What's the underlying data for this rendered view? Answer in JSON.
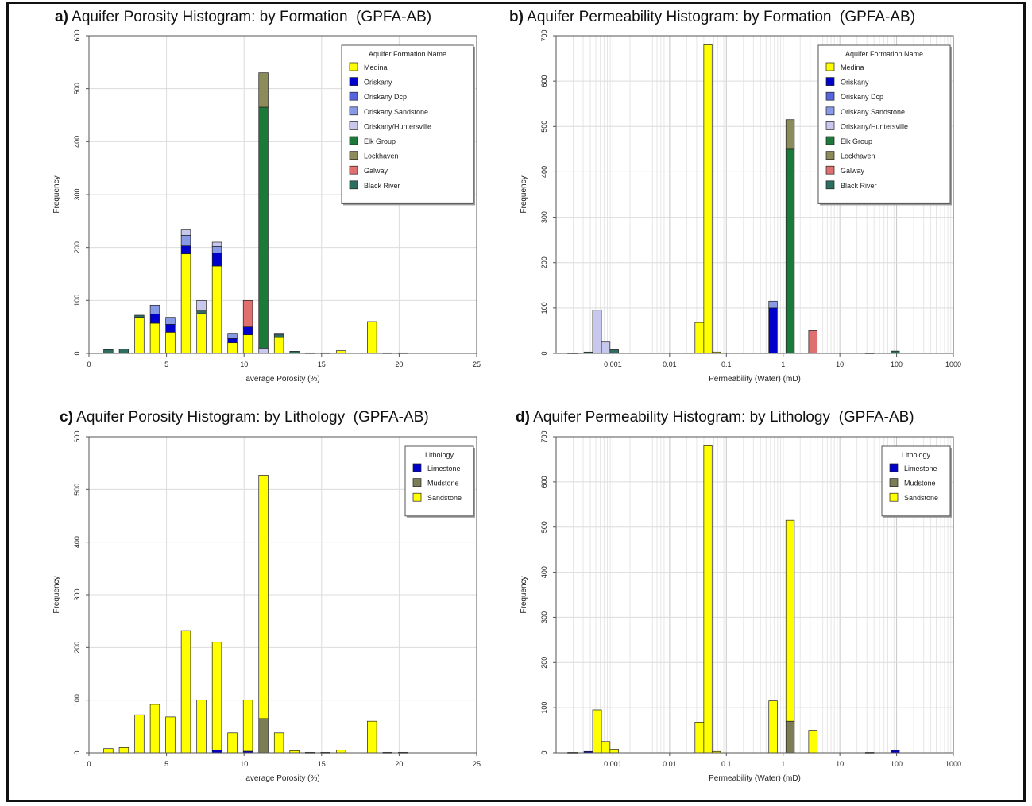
{
  "colors": {
    "Medina": "#ffff00",
    "Oriskany": "#0000cc",
    "Oriskany Dcp": "#5566dd",
    "Oriskany Sandstone": "#8899e6",
    "Oriskany/Huntersville": "#c8c8ee",
    "Elk Group": "#1b7a3a",
    "Lockhaven": "#8c8c5a",
    "Galway": "#e07070",
    "Black River": "#2e6e60",
    "Limestone": "#0000cc",
    "Mudstone": "#7d7d55",
    "Sandstone": "#ffff00"
  },
  "panels": [
    {
      "id": "a",
      "label": "a)",
      "title": "Aquifer Porosity Histogram: by Formation",
      "source": "(GPFA-AB)",
      "chart_data": {
        "type": "bar",
        "stacked": true,
        "x_scale": "linear",
        "xlabel": "average Porosity (%)",
        "ylabel": "Frequency",
        "xlim": [
          0,
          25
        ],
        "ylim": [
          0,
          600
        ],
        "xticks": [
          0,
          5,
          10,
          15,
          20,
          25
        ],
        "yticks": [
          0,
          100,
          200,
          300,
          400,
          500,
          600
        ],
        "grid": true,
        "legend_title": "Aquifer Formation Name",
        "legend_position": "top-right",
        "legend": [
          "Medina",
          "Oriskany",
          "Oriskany Dcp",
          "Oriskany Sandstone",
          "Oriskany/Huntersville",
          "Elk Group",
          "Lockhaven",
          "Galway",
          "Black River"
        ],
        "bars": [
          {
            "x": 1.25,
            "segments": [
              [
                "Black River",
                7
              ]
            ]
          },
          {
            "x": 2.25,
            "segments": [
              [
                "Black River",
                8
              ]
            ]
          },
          {
            "x": 3.25,
            "segments": [
              [
                "Medina",
                68
              ],
              [
                "Black River",
                4
              ]
            ]
          },
          {
            "x": 4.25,
            "segments": [
              [
                "Medina",
                57
              ],
              [
                "Oriskany",
                17
              ],
              [
                "Oriskany Sandstone",
                17
              ]
            ]
          },
          {
            "x": 5.25,
            "segments": [
              [
                "Medina",
                40
              ],
              [
                "Oriskany",
                15
              ],
              [
                "Oriskany Sandstone",
                13
              ]
            ]
          },
          {
            "x": 6.25,
            "segments": [
              [
                "Medina",
                188
              ],
              [
                "Oriskany",
                15
              ],
              [
                "Oriskany Sandstone",
                20
              ],
              [
                "Oriskany/Huntersville",
                10
              ]
            ]
          },
          {
            "x": 7.25,
            "segments": [
              [
                "Medina",
                75
              ],
              [
                "Black River",
                5
              ],
              [
                "Oriskany/Huntersville",
                20
              ]
            ]
          },
          {
            "x": 8.25,
            "segments": [
              [
                "Medina",
                165
              ],
              [
                "Oriskany",
                25
              ],
              [
                "Oriskany Sandstone",
                12
              ],
              [
                "Oriskany/Huntersville",
                8
              ]
            ]
          },
          {
            "x": 9.25,
            "segments": [
              [
                "Medina",
                20
              ],
              [
                "Oriskany",
                8
              ],
              [
                "Oriskany Sandstone",
                10
              ]
            ]
          },
          {
            "x": 10.25,
            "segments": [
              [
                "Medina",
                35
              ],
              [
                "Oriskany",
                15
              ],
              [
                "Galway",
                50
              ]
            ]
          },
          {
            "x": 11.25,
            "segments": [
              [
                "Oriskany/Huntersville",
                10
              ],
              [
                "Elk Group",
                455
              ],
              [
                "Lockhaven",
                65
              ]
            ]
          },
          {
            "x": 12.25,
            "segments": [
              [
                "Medina",
                30
              ],
              [
                "Black River",
                5
              ],
              [
                "Oriskany Sandstone",
                3
              ]
            ]
          },
          {
            "x": 13.25,
            "segments": [
              [
                "Black River",
                4
              ]
            ]
          },
          {
            "x": 14.25,
            "segments": [
              [
                "Medina",
                1
              ]
            ]
          },
          {
            "x": 15.25,
            "segments": [
              [
                "Medina",
                1
              ]
            ]
          },
          {
            "x": 16.25,
            "segments": [
              [
                "Medina",
                5
              ]
            ]
          },
          {
            "x": 18.25,
            "segments": [
              [
                "Medina",
                60
              ]
            ]
          },
          {
            "x": 19.25,
            "segments": [
              [
                "Medina",
                1
              ]
            ]
          },
          {
            "x": 20.25,
            "segments": [
              [
                "Medina",
                1
              ]
            ]
          }
        ]
      }
    },
    {
      "id": "b",
      "label": "b)",
      "title": "Aquifer Permeability Histogram: by Formation",
      "source": "(GPFA-AB)",
      "chart_data": {
        "type": "bar",
        "stacked": true,
        "x_scale": "log",
        "xlabel": "Permeability (Water) (mD)",
        "ylabel": "Frequency",
        "xlim": [
          0.0001,
          1000
        ],
        "ylim": [
          0,
          700
        ],
        "xticks": [
          0.001,
          0.01,
          0.1,
          1,
          10,
          100,
          1000
        ],
        "xticklabels": [
          "0.001",
          "0.01",
          "0.1",
          "1",
          "10",
          "100",
          "1000"
        ],
        "yticks": [
          0,
          100,
          200,
          300,
          400,
          500,
          600,
          700
        ],
        "grid": true,
        "legend_title": "Aquifer Formation Name",
        "legend_position": "top-right",
        "legend": [
          "Medina",
          "Oriskany",
          "Oriskany Dcp",
          "Oriskany Sandstone",
          "Oriskany/Huntersville",
          "Elk Group",
          "Lockhaven",
          "Galway",
          "Black River"
        ],
        "bars": [
          {
            "x0": 0.00016,
            "x1": 0.00024,
            "segments": [
              [
                "Black River",
                1
              ]
            ]
          },
          {
            "x0": 0.00031,
            "x1": 0.00044,
            "segments": [
              [
                "Black River",
                3
              ]
            ]
          },
          {
            "x0": 0.00044,
            "x1": 0.00063,
            "segments": [
              [
                "Oriskany/Huntersville",
                95
              ]
            ]
          },
          {
            "x0": 0.00063,
            "x1": 0.00089,
            "segments": [
              [
                "Oriskany/Huntersville",
                25
              ]
            ]
          },
          {
            "x0": 0.00089,
            "x1": 0.00126,
            "segments": [
              [
                "Black River",
                8
              ]
            ]
          },
          {
            "x0": 0.028,
            "x1": 0.04,
            "segments": [
              [
                "Medina",
                68
              ]
            ]
          },
          {
            "x0": 0.04,
            "x1": 0.056,
            "segments": [
              [
                "Medina",
                680
              ]
            ]
          },
          {
            "x0": 0.056,
            "x1": 0.079,
            "segments": [
              [
                "Medina",
                3
              ]
            ]
          },
          {
            "x0": 0.56,
            "x1": 0.79,
            "segments": [
              [
                "Oriskany",
                100
              ],
              [
                "Oriskany Sandstone",
                15
              ]
            ]
          },
          {
            "x0": 1.12,
            "x1": 1.58,
            "segments": [
              [
                "Elk Group",
                450
              ],
              [
                "Lockhaven",
                65
              ]
            ]
          },
          {
            "x0": 2.82,
            "x1": 3.98,
            "segments": [
              [
                "Galway",
                50
              ]
            ]
          },
          {
            "x0": 28.2,
            "x1": 39.8,
            "segments": [
              [
                "Medina",
                1
              ]
            ]
          },
          {
            "x0": 79.4,
            "x1": 112,
            "segments": [
              [
                "Black River",
                5
              ]
            ]
          }
        ]
      }
    },
    {
      "id": "c",
      "label": "c)",
      "title": "Aquifer Porosity Histogram: by Lithology",
      "source": "(GPFA-AB)",
      "chart_data": {
        "type": "bar",
        "stacked": true,
        "x_scale": "linear",
        "xlabel": "average Porosity (%)",
        "ylabel": "Frequency",
        "xlim": [
          0,
          25
        ],
        "ylim": [
          0,
          600
        ],
        "xticks": [
          0,
          5,
          10,
          15,
          20,
          25
        ],
        "yticks": [
          0,
          100,
          200,
          300,
          400,
          500,
          600
        ],
        "grid": true,
        "legend_title": "Lithology",
        "legend_position": "top-right",
        "legend": [
          "Limestone",
          "Mudstone",
          "Sandstone"
        ],
        "bars": [
          {
            "x": 1.25,
            "segments": [
              [
                "Sandstone",
                8
              ]
            ]
          },
          {
            "x": 2.25,
            "segments": [
              [
                "Sandstone",
                10
              ]
            ]
          },
          {
            "x": 3.25,
            "segments": [
              [
                "Sandstone",
                72
              ]
            ]
          },
          {
            "x": 4.25,
            "segments": [
              [
                "Sandstone",
                92
              ]
            ]
          },
          {
            "x": 5.25,
            "segments": [
              [
                "Sandstone",
                68
              ]
            ]
          },
          {
            "x": 6.25,
            "segments": [
              [
                "Sandstone",
                232
              ]
            ]
          },
          {
            "x": 7.25,
            "segments": [
              [
                "Sandstone",
                100
              ]
            ]
          },
          {
            "x": 8.25,
            "segments": [
              [
                "Limestone",
                5
              ],
              [
                "Sandstone",
                205
              ]
            ]
          },
          {
            "x": 9.25,
            "segments": [
              [
                "Sandstone",
                38
              ]
            ]
          },
          {
            "x": 10.25,
            "segments": [
              [
                "Limestone",
                3
              ],
              [
                "Sandstone",
                97
              ]
            ]
          },
          {
            "x": 11.25,
            "segments": [
              [
                "Mudstone",
                65
              ],
              [
                "Sandstone",
                462
              ]
            ]
          },
          {
            "x": 12.25,
            "segments": [
              [
                "Sandstone",
                38
              ]
            ]
          },
          {
            "x": 13.25,
            "segments": [
              [
                "Sandstone",
                4
              ]
            ]
          },
          {
            "x": 14.25,
            "segments": [
              [
                "Sandstone",
                1
              ]
            ]
          },
          {
            "x": 15.25,
            "segments": [
              [
                "Sandstone",
                1
              ]
            ]
          },
          {
            "x": 16.25,
            "segments": [
              [
                "Sandstone",
                5
              ]
            ]
          },
          {
            "x": 18.25,
            "segments": [
              [
                "Sandstone",
                60
              ]
            ]
          },
          {
            "x": 19.25,
            "segments": [
              [
                "Sandstone",
                1
              ]
            ]
          },
          {
            "x": 20.25,
            "segments": [
              [
                "Sandstone",
                1
              ]
            ]
          }
        ]
      }
    },
    {
      "id": "d",
      "label": "d)",
      "title": "Aquifer Permeability Histogram: by Lithology",
      "source": "(GPFA-AB)",
      "chart_data": {
        "type": "bar",
        "stacked": true,
        "x_scale": "log",
        "xlabel": "Permeability (Water) (mD)",
        "ylabel": "Frequency",
        "xlim": [
          0.0001,
          1000
        ],
        "ylim": [
          0,
          700
        ],
        "xticks": [
          0.001,
          0.01,
          0.1,
          1,
          10,
          100,
          1000
        ],
        "xticklabels": [
          "0.001",
          "0.01",
          "0.1",
          "1",
          "10",
          "100",
          "1000"
        ],
        "yticks": [
          0,
          100,
          200,
          300,
          400,
          500,
          600,
          700
        ],
        "grid": true,
        "legend_title": "Lithology",
        "legend_position": "top-right",
        "legend": [
          "Limestone",
          "Mudstone",
          "Sandstone"
        ],
        "bars": [
          {
            "x0": 0.00016,
            "x1": 0.00024,
            "segments": [
              [
                "Limestone",
                1
              ]
            ]
          },
          {
            "x0": 0.00031,
            "x1": 0.00044,
            "segments": [
              [
                "Limestone",
                3
              ]
            ]
          },
          {
            "x0": 0.00044,
            "x1": 0.00063,
            "segments": [
              [
                "Sandstone",
                95
              ]
            ]
          },
          {
            "x0": 0.00063,
            "x1": 0.00089,
            "segments": [
              [
                "Sandstone",
                25
              ]
            ]
          },
          {
            "x0": 0.00089,
            "x1": 0.00126,
            "segments": [
              [
                "Sandstone",
                8
              ]
            ]
          },
          {
            "x0": 0.028,
            "x1": 0.04,
            "segments": [
              [
                "Sandstone",
                68
              ]
            ]
          },
          {
            "x0": 0.04,
            "x1": 0.056,
            "segments": [
              [
                "Sandstone",
                680
              ]
            ]
          },
          {
            "x0": 0.056,
            "x1": 0.079,
            "segments": [
              [
                "Sandstone",
                3
              ]
            ]
          },
          {
            "x0": 0.56,
            "x1": 0.79,
            "segments": [
              [
                "Sandstone",
                115
              ]
            ]
          },
          {
            "x0": 1.12,
            "x1": 1.58,
            "segments": [
              [
                "Mudstone",
                70
              ],
              [
                "Sandstone",
                445
              ]
            ]
          },
          {
            "x0": 2.82,
            "x1": 3.98,
            "segments": [
              [
                "Sandstone",
                50
              ]
            ]
          },
          {
            "x0": 28.2,
            "x1": 39.8,
            "segments": [
              [
                "Limestone",
                1
              ]
            ]
          },
          {
            "x0": 79.4,
            "x1": 112,
            "segments": [
              [
                "Limestone",
                5
              ]
            ]
          }
        ]
      }
    }
  ]
}
